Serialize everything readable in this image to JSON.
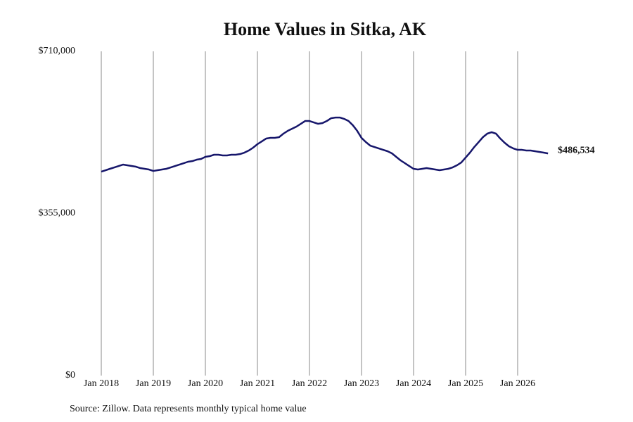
{
  "chart_data": {
    "type": "line",
    "title": "Home Values in Sitka, AK",
    "x": [
      "2018-01",
      "2018-02",
      "2018-03",
      "2018-04",
      "2018-05",
      "2018-06",
      "2018-07",
      "2018-08",
      "2018-09",
      "2018-10",
      "2018-11",
      "2018-12",
      "2019-01",
      "2019-02",
      "2019-03",
      "2019-04",
      "2019-05",
      "2019-06",
      "2019-07",
      "2019-08",
      "2019-09",
      "2019-10",
      "2019-11",
      "2019-12",
      "2020-01",
      "2020-02",
      "2020-03",
      "2020-04",
      "2020-05",
      "2020-06",
      "2020-07",
      "2020-08",
      "2020-09",
      "2020-10",
      "2020-11",
      "2020-12",
      "2021-01",
      "2021-02",
      "2021-03",
      "2021-04",
      "2021-05",
      "2021-06",
      "2021-07",
      "2021-08",
      "2021-09",
      "2021-10",
      "2021-11",
      "2021-12",
      "2022-01",
      "2022-02",
      "2022-03",
      "2022-04",
      "2022-05",
      "2022-06",
      "2022-07",
      "2022-08",
      "2022-09",
      "2022-10",
      "2022-11",
      "2022-12",
      "2023-01",
      "2023-02",
      "2023-03",
      "2023-04",
      "2023-05",
      "2023-06",
      "2023-07",
      "2023-08",
      "2023-09",
      "2023-10",
      "2023-11",
      "2023-12",
      "2024-01",
      "2024-02",
      "2024-03",
      "2024-04",
      "2024-05",
      "2024-06",
      "2024-07",
      "2024-08",
      "2024-09",
      "2024-10",
      "2024-11",
      "2024-12",
      "2025-01",
      "2025-02",
      "2025-03",
      "2025-04",
      "2025-05",
      "2025-06",
      "2025-07",
      "2025-08",
      "2025-09",
      "2025-10",
      "2025-11",
      "2025-12",
      "2026-01",
      "2026-02",
      "2026-03",
      "2026-04",
      "2026-05",
      "2026-06",
      "2026-07",
      "2026-08"
    ],
    "series": [
      {
        "name": "Typical home value",
        "color": "#16166b",
        "end_label": "$486,534",
        "values": [
          446600,
          449700,
          452800,
          455800,
          458900,
          462000,
          460500,
          458900,
          457400,
          454300,
          452800,
          451200,
          448100,
          449700,
          451200,
          452800,
          455800,
          458900,
          462000,
          465000,
          468200,
          469700,
          472800,
          474300,
          479000,
          480500,
          483600,
          483600,
          482000,
          482000,
          483600,
          483600,
          485100,
          488200,
          492800,
          499000,
          506700,
          512800,
          519000,
          520500,
          520500,
          522100,
          529800,
          535900,
          540500,
          545200,
          551300,
          557500,
          557500,
          554400,
          551300,
          552900,
          557500,
          563600,
          565100,
          565100,
          562100,
          557500,
          548200,
          535900,
          520500,
          511300,
          503600,
          500500,
          497400,
          494300,
          491300,
          486700,
          479000,
          471300,
          465100,
          458900,
          452800,
          451200,
          452800,
          454300,
          452800,
          451200,
          449700,
          451200,
          452800,
          455800,
          460500,
          466600,
          477400,
          488200,
          500500,
          511300,
          522100,
          529800,
          532900,
          529800,
          519000,
          509800,
          502100,
          497400,
          494300,
          494300,
          492800,
          492800,
          491300,
          489700,
          488200,
          486534
        ]
      }
    ],
    "xticks": [
      {
        "value": "2018-01",
        "label": "Jan 2018"
      },
      {
        "value": "2019-01",
        "label": "Jan 2019"
      },
      {
        "value": "2020-01",
        "label": "Jan 2020"
      },
      {
        "value": "2021-01",
        "label": "Jan 2021"
      },
      {
        "value": "2022-01",
        "label": "Jan 2022"
      },
      {
        "value": "2023-01",
        "label": "Jan 2023"
      },
      {
        "value": "2024-01",
        "label": "Jan 2024"
      },
      {
        "value": "2025-01",
        "label": "Jan 2025"
      },
      {
        "value": "2026-01",
        "label": "Jan 2026"
      }
    ],
    "ylim": [
      0,
      710000
    ],
    "yticks": [
      {
        "value": 0,
        "label": "$0"
      },
      {
        "value": 355000,
        "label": "$355,000"
      },
      {
        "value": 710000,
        "label": "$710,000"
      }
    ],
    "grid": true,
    "source": "Source: Zillow. Data represents monthly typical home value"
  }
}
